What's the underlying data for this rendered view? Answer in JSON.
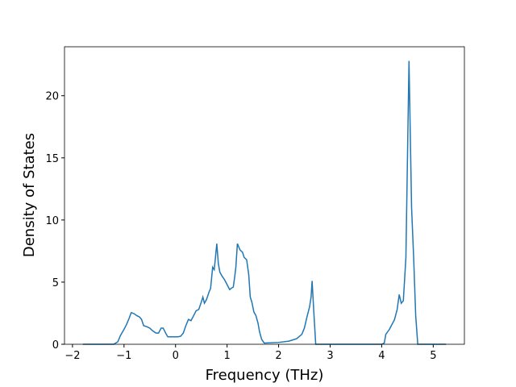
{
  "chart_data": {
    "type": "line",
    "xlabel": "Frequency (THz)",
    "ylabel": "Density of States",
    "xlim": [
      -2.155,
      5.605
    ],
    "ylim": [
      0,
      23.94
    ],
    "xticks": [
      {
        "value": -2,
        "label": "−2"
      },
      {
        "value": -1,
        "label": "−1"
      },
      0,
      1,
      2,
      3,
      4,
      5
    ],
    "yticks": [
      0,
      5,
      10,
      15,
      20
    ],
    "grid": false,
    "series": [
      {
        "color": "#1f77b4",
        "x": [
          -1.8,
          -1.2,
          -1.12,
          -1.07,
          -1.0,
          -0.95,
          -0.9,
          -0.86,
          -0.8,
          -0.75,
          -0.7,
          -0.66,
          -0.62,
          -0.55,
          -0.5,
          -0.45,
          -0.38,
          -0.33,
          -0.28,
          -0.24,
          -0.18,
          -0.15,
          0.05,
          0.1,
          0.15,
          0.2,
          0.25,
          0.3,
          0.35,
          0.4,
          0.45,
          0.5,
          0.53,
          0.56,
          0.6,
          0.65,
          0.68,
          0.72,
          0.75,
          0.77,
          0.8,
          0.83,
          0.86,
          0.9,
          0.95,
          1.0,
          1.05,
          1.08,
          1.12,
          1.15,
          1.17,
          1.2,
          1.25,
          1.3,
          1.33,
          1.38,
          1.42,
          1.45,
          1.48,
          1.52,
          1.56,
          1.6,
          1.63,
          1.67,
          1.72,
          2.0,
          2.2,
          2.35,
          2.45,
          2.5,
          2.55,
          2.6,
          2.63,
          2.65,
          2.68,
          2.72,
          4.0,
          4.05,
          4.08,
          4.15,
          4.25,
          4.3,
          4.34,
          4.38,
          4.42,
          4.47,
          4.53,
          4.58,
          4.62,
          4.66,
          4.7,
          5.25
        ],
        "values": [
          0,
          0,
          0.2,
          0.7,
          1.2,
          1.6,
          2.1,
          2.55,
          2.45,
          2.3,
          2.2,
          2.0,
          1.5,
          1.4,
          1.3,
          1.1,
          0.9,
          0.9,
          1.3,
          1.3,
          0.8,
          0.6,
          0.6,
          0.65,
          0.9,
          1.5,
          2.0,
          1.9,
          2.3,
          2.7,
          2.8,
          3.4,
          3.8,
          3.3,
          3.6,
          4.2,
          4.5,
          6.2,
          6.0,
          6.8,
          8.1,
          6.5,
          5.8,
          5.5,
          5.2,
          4.8,
          4.4,
          4.5,
          4.6,
          5.5,
          6.2,
          8.1,
          7.6,
          7.4,
          7.0,
          6.8,
          5.6,
          3.8,
          3.4,
          2.6,
          2.3,
          1.7,
          1.0,
          0.4,
          0.1,
          0.15,
          0.25,
          0.45,
          0.8,
          1.3,
          2.2,
          3.0,
          3.8,
          5.1,
          2.8,
          0,
          0,
          0.1,
          0.8,
          1.2,
          2.0,
          2.8,
          4.0,
          3.3,
          3.5,
          7.0,
          22.8,
          11,
          7,
          2.3,
          0,
          0
        ]
      }
    ]
  }
}
